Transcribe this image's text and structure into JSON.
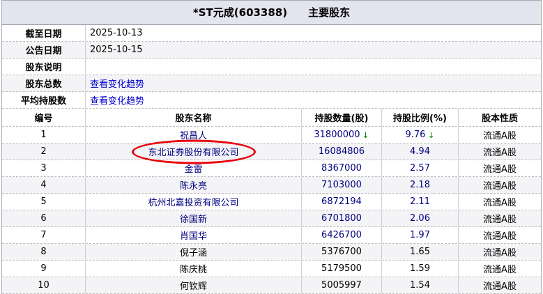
{
  "title": "*ST元成(603388)　　主要股东",
  "info_rows": [
    {
      "label": "截至日期",
      "value": "2025-10-13",
      "is_link": false
    },
    {
      "label": "公告日期",
      "value": "2025-10-15",
      "is_link": false
    },
    {
      "label": "股东说明",
      "value": "",
      "is_link": false
    },
    {
      "label": "股东总数",
      "value": "查看变化趋势",
      "is_link": true
    },
    {
      "label": "平均持股数",
      "value": "查看变化趋势",
      "is_link": true
    }
  ],
  "table": {
    "headers": [
      "编号",
      "股东名称",
      "持股数量(股)",
      "持股比例(%)",
      "股本性质"
    ],
    "rows": [
      {
        "no": "1",
        "name": "祝昌人",
        "shares": "31800000",
        "shares_arrow": "↓",
        "ratio": "9.76",
        "ratio_arrow": "↓",
        "type": "流通A股",
        "blue": true,
        "circled": false
      },
      {
        "no": "2",
        "name": "东北证券股份有限公司",
        "shares": "16084806",
        "shares_arrow": "",
        "ratio": "4.94",
        "ratio_arrow": "",
        "type": "流通A股",
        "blue": true,
        "circled": true
      },
      {
        "no": "3",
        "name": "金雷",
        "shares": "8367000",
        "shares_arrow": "",
        "ratio": "2.57",
        "ratio_arrow": "",
        "type": "流通A股",
        "blue": true,
        "circled": false
      },
      {
        "no": "4",
        "name": "陈永亮",
        "shares": "7103000",
        "shares_arrow": "",
        "ratio": "2.18",
        "ratio_arrow": "",
        "type": "流通A股",
        "blue": true,
        "circled": false
      },
      {
        "no": "5",
        "name": "杭州北嘉投资有限公司",
        "shares": "6872194",
        "shares_arrow": "",
        "ratio": "2.11",
        "ratio_arrow": "",
        "type": "流通A股",
        "blue": true,
        "circled": false
      },
      {
        "no": "6",
        "name": "徐国新",
        "shares": "6701800",
        "shares_arrow": "",
        "ratio": "2.06",
        "ratio_arrow": "",
        "type": "流通A股",
        "blue": true,
        "circled": false
      },
      {
        "no": "7",
        "name": "肖国华",
        "shares": "6426700",
        "shares_arrow": "",
        "ratio": "1.97",
        "ratio_arrow": "",
        "type": "流通A股",
        "blue": true,
        "circled": false
      },
      {
        "no": "8",
        "name": "倪子涵",
        "shares": "5376700",
        "shares_arrow": "",
        "ratio": "1.65",
        "ratio_arrow": "",
        "type": "流通A股",
        "blue": false,
        "circled": false
      },
      {
        "no": "9",
        "name": "陈庆桃",
        "shares": "5179500",
        "shares_arrow": "",
        "ratio": "1.59",
        "ratio_arrow": "",
        "type": "流通A股",
        "blue": false,
        "circled": false
      },
      {
        "no": "10",
        "name": "何钦辉",
        "shares": "5005997",
        "shares_arrow": "",
        "ratio": "1.54",
        "ratio_arrow": "",
        "type": "流通A股",
        "blue": false,
        "circled": false
      }
    ]
  },
  "annotation": {
    "shape": "ellipse",
    "target_row": "2"
  },
  "colors": {
    "navy": "#000080",
    "link_blue": "#0000cc",
    "arrow_green": "#008800",
    "annotation_red": "#e8000b",
    "title_bg": "#e4e4ee",
    "alt_row_bg": "#f4f4f7",
    "border_grey": "#a9a9b4"
  }
}
